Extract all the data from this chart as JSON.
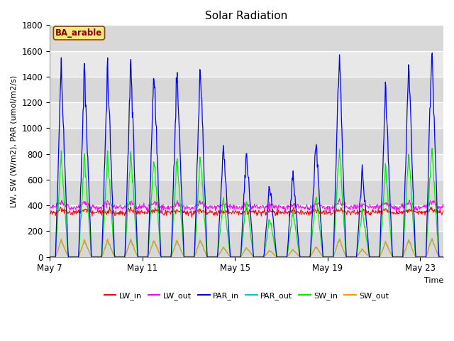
{
  "title": "Solar Radiation",
  "xlabel": "Time",
  "ylabel": "LW, SW (W/m2), PAR (umol/m2/s)",
  "annotation_text": "BA_arable",
  "annotation_facecolor": "#f5e880",
  "annotation_edgecolor": "#8B4513",
  "annotation_textcolor": "#8B0000",
  "ylim": [
    0,
    1800
  ],
  "yticks": [
    0,
    200,
    400,
    600,
    800,
    1000,
    1200,
    1400,
    1600,
    1800
  ],
  "xtick_labels": [
    "May 7",
    "May 11",
    "May 15",
    "May 19",
    "May 23"
  ],
  "xtick_positions": [
    0,
    4,
    8,
    12,
    16
  ],
  "legend_entries": [
    {
      "label": "LW_in",
      "color": "#ff0000"
    },
    {
      "label": "LW_out",
      "color": "#ff00ff"
    },
    {
      "label": "PAR_in",
      "color": "#0000ff"
    },
    {
      "label": "PAR_out",
      "color": "#00cccc"
    },
    {
      "label": "SW_in",
      "color": "#00ee00"
    },
    {
      "label": "SW_out",
      "color": "#ff9900"
    }
  ],
  "band_colors": [
    "#d8d8d8",
    "#e8e8e8"
  ],
  "n_days": 17,
  "title_fontsize": 11,
  "label_fontsize": 8,
  "tick_fontsize": 8.5
}
